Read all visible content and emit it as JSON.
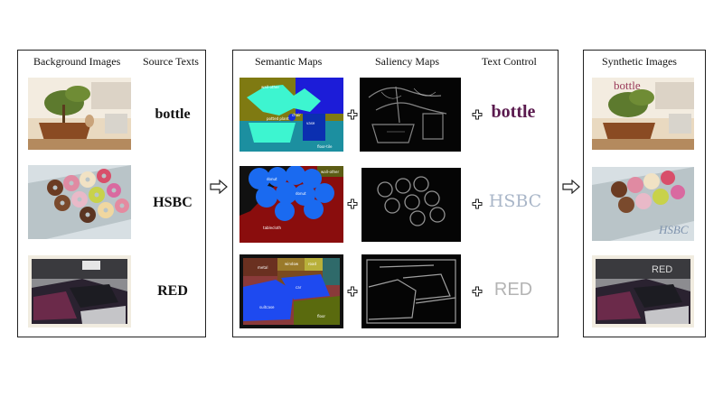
{
  "panels": {
    "inputs": {
      "bg_header": "Background Images",
      "src_header": "Source Texts",
      "source_texts": [
        "bottle",
        "HSBC",
        "RED"
      ]
    },
    "conditions": {
      "semantic_header": "Semantic Maps",
      "saliency_header": "Saliency Maps",
      "control_header": "Text Control",
      "control_texts": [
        "bottle",
        "HSBC",
        "RED"
      ],
      "control_colors": [
        "#5a1a4e",
        "#a9b6c8",
        "#b4b4b4"
      ],
      "semantic_labels": [
        [
          "wall-other",
          "potted plant",
          "chair",
          "vase",
          "floor-tile"
        ],
        [
          "donut",
          "donut",
          "tablecloth",
          "wall-other"
        ],
        [
          "metal",
          "window",
          "road",
          "car",
          "suitcase",
          "floor"
        ]
      ]
    },
    "outputs": {
      "synthetic_header": "Synthetic Images",
      "overlay_texts": [
        "bottle",
        "HSBC",
        "RED"
      ]
    }
  },
  "icons": {
    "plus": "plus-icon",
    "arrow": "hollow-arrow-right-icon"
  }
}
